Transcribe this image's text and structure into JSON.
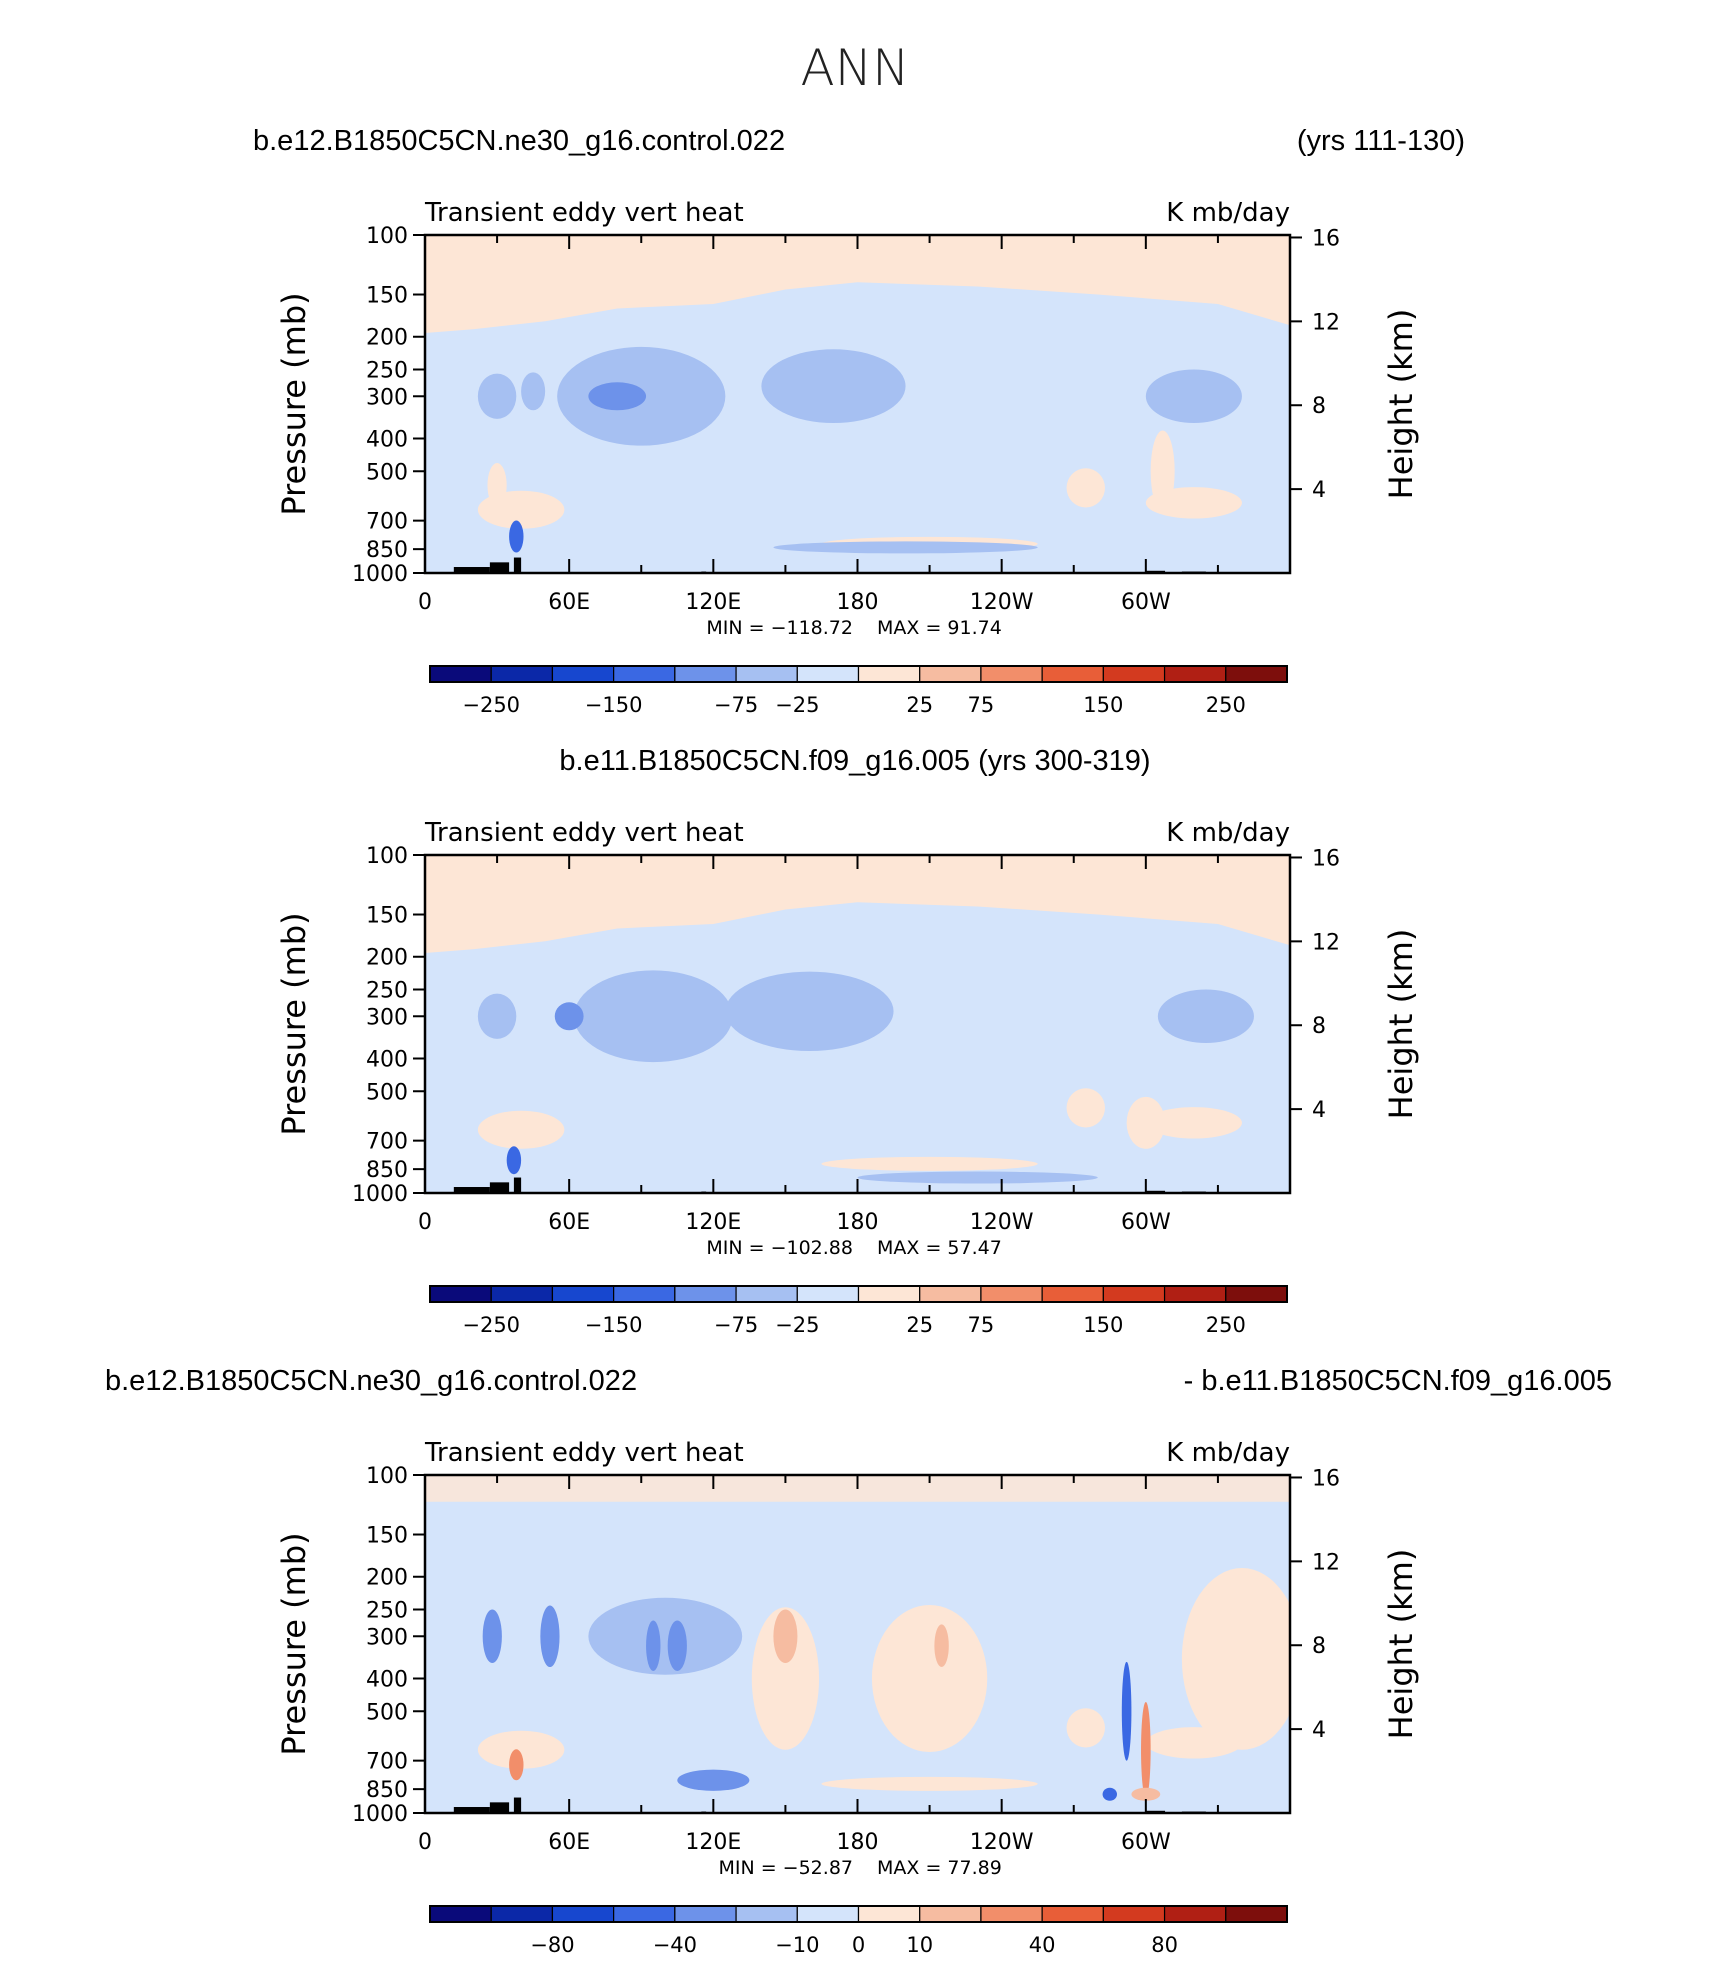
{
  "figure_title": "ANN",
  "colors": {
    "blue": [
      "#0a0a7a",
      "#0b28a8",
      "#1747cf",
      "#3a68e3",
      "#6d92ea",
      "#a6c0f2",
      "#d4e4fb"
    ],
    "red": [
      "#fde6d6",
      "#f6bca1",
      "#f28e6a",
      "#e85e38",
      "#d33a1f",
      "#b01f14",
      "#7d0e0c"
    ],
    "land": "#000000"
  },
  "chart_data": [
    {
      "type": "heatmap",
      "left_title": "b.e12.B1850C5CN.ne30_g16.control.022",
      "right_title": "(yrs 111-130)",
      "center_title": "",
      "subtitle_left": "Transient  eddy  vert  heat",
      "subtitle_right": "K  mb/day",
      "ylabel": "Pressure  (mb)",
      "ylabel_right": "Height  (km)",
      "y_ticks": [
        "100",
        "150",
        "200",
        "250",
        "300",
        "400",
        "500",
        "700",
        "850",
        "1000"
      ],
      "y_tick_values": [
        100,
        150,
        200,
        250,
        300,
        400,
        500,
        700,
        850,
        1000
      ],
      "y_right_ticks": [
        "16",
        "12",
        "8",
        "4"
      ],
      "y_right_values": [
        16,
        12,
        8,
        4
      ],
      "x_ticks": [
        "0",
        "60E",
        "120E",
        "180",
        "120W",
        "60W"
      ],
      "x_tick_values": [
        0,
        60,
        120,
        180,
        240,
        300
      ],
      "xlim": [
        0,
        360
      ],
      "min_label": "MIN  =  −118.72",
      "max_label": "MAX  =   91.74",
      "colorbar_labels": [
        "−250",
        "−150",
        "−75",
        "−25",
        "25",
        "75",
        "150",
        "250"
      ],
      "blobs": [
        {
          "lon": 30,
          "p": 300,
          "rx": 8,
          "rp": 50,
          "c": "b5"
        },
        {
          "lon": 45,
          "p": 290,
          "rx": 5,
          "rp": 40,
          "c": "b5"
        },
        {
          "lon": 90,
          "p": 300,
          "rx": 35,
          "rp": 120,
          "c": "b5"
        },
        {
          "lon": 170,
          "p": 280,
          "rx": 30,
          "rp": 80,
          "c": "b5"
        },
        {
          "lon": 320,
          "p": 300,
          "rx": 20,
          "rp": 60,
          "c": "b5"
        },
        {
          "lon": 80,
          "p": 300,
          "rx": 12,
          "rp": 30,
          "c": "b4"
        },
        {
          "lon": 38,
          "p": 780,
          "rx": 3,
          "rp": 90,
          "c": "b3"
        },
        {
          "lon": 307,
          "p": 500,
          "rx": 5,
          "rp": 160,
          "c": "r1"
        },
        {
          "lon": 30,
          "p": 550,
          "rx": 4,
          "rp": 90,
          "c": "r1"
        },
        {
          "lon": 200,
          "p": 840,
          "rx": 55,
          "rp": 30,
          "c": "b5"
        }
      ]
    },
    {
      "type": "heatmap",
      "left_title": "",
      "right_title": "",
      "center_title": "b.e11.B1850C5CN.f09_g16.005 (yrs 300-319)",
      "subtitle_left": "Transient  eddy  vert  heat",
      "subtitle_right": "K  mb/day",
      "ylabel": "Pressure  (mb)",
      "ylabel_right": "Height  (km)",
      "y_ticks": [
        "100",
        "150",
        "200",
        "250",
        "300",
        "400",
        "500",
        "700",
        "850",
        "1000"
      ],
      "y_tick_values": [
        100,
        150,
        200,
        250,
        300,
        400,
        500,
        700,
        850,
        1000
      ],
      "y_right_ticks": [
        "16",
        "12",
        "8",
        "4"
      ],
      "y_right_values": [
        16,
        12,
        8,
        4
      ],
      "x_ticks": [
        "0",
        "60E",
        "120E",
        "180",
        "120W",
        "60W"
      ],
      "x_tick_values": [
        0,
        60,
        120,
        180,
        240,
        300
      ],
      "xlim": [
        0,
        360
      ],
      "min_label": "MIN  =  −102.88",
      "max_label": "MAX  =   57.47",
      "colorbar_labels": [
        "−250",
        "−150",
        "−75",
        "−25",
        "25",
        "75",
        "150",
        "250"
      ],
      "blobs": [
        {
          "lon": 30,
          "p": 300,
          "rx": 8,
          "rp": 50,
          "c": "b5"
        },
        {
          "lon": 95,
          "p": 300,
          "rx": 33,
          "rp": 110,
          "c": "b5"
        },
        {
          "lon": 160,
          "p": 290,
          "rx": 35,
          "rp": 90,
          "c": "b5"
        },
        {
          "lon": 325,
          "p": 300,
          "rx": 20,
          "rp": 60,
          "c": "b5"
        },
        {
          "lon": 60,
          "p": 300,
          "rx": 6,
          "rp": 30,
          "c": "b4"
        },
        {
          "lon": 37,
          "p": 800,
          "rx": 3,
          "rp": 80,
          "c": "b3"
        },
        {
          "lon": 300,
          "p": 620,
          "rx": 8,
          "rp": 120,
          "c": "r1"
        },
        {
          "lon": 230,
          "p": 900,
          "rx": 50,
          "rp": 25,
          "c": "b5"
        }
      ]
    },
    {
      "type": "heatmap",
      "left_title": "b.e12.B1850C5CN.ne30_g16.control.022",
      "right_title": "- b.e11.B1850C5CN.f09_g16.005",
      "center_title": "",
      "subtitle_left": "Transient  eddy  vert  heat",
      "subtitle_right": "K  mb/day",
      "ylabel": "Pressure  (mb)",
      "ylabel_right": "Height  (km)",
      "y_ticks": [
        "100",
        "150",
        "200",
        "250",
        "300",
        "400",
        "500",
        "700",
        "850",
        "1000"
      ],
      "y_tick_values": [
        100,
        150,
        200,
        250,
        300,
        400,
        500,
        700,
        850,
        1000
      ],
      "y_right_ticks": [
        "16",
        "12",
        "8",
        "4"
      ],
      "y_right_values": [
        16,
        12,
        8,
        4
      ],
      "x_ticks": [
        "0",
        "60E",
        "120E",
        "180",
        "120W",
        "60W"
      ],
      "x_tick_values": [
        0,
        60,
        120,
        180,
        240,
        300
      ],
      "xlim": [
        0,
        360
      ],
      "min_label": "MIN  =  −52.87",
      "max_label": "MAX  =   77.89",
      "colorbar_labels": [
        "−80",
        "−40",
        "−10",
        "0",
        "10",
        "40",
        "80"
      ],
      "blobs": [
        {
          "lon": 100,
          "p": 300,
          "rx": 32,
          "rp": 90,
          "c": "b5"
        },
        {
          "lon": 105,
          "p": 320,
          "rx": 4,
          "rp": 60,
          "c": "b4"
        },
        {
          "lon": 95,
          "p": 320,
          "rx": 3,
          "rp": 60,
          "c": "b4"
        },
        {
          "lon": 52,
          "p": 300,
          "rx": 4,
          "rp": 70,
          "c": "b4"
        },
        {
          "lon": 28,
          "p": 300,
          "rx": 4,
          "rp": 60,
          "c": "b4"
        },
        {
          "lon": 150,
          "p": 400,
          "rx": 14,
          "rp": 250,
          "c": "r1"
        },
        {
          "lon": 150,
          "p": 300,
          "rx": 5,
          "rp": 60,
          "c": "r2"
        },
        {
          "lon": 210,
          "p": 400,
          "rx": 24,
          "rp": 260,
          "c": "r1"
        },
        {
          "lon": 215,
          "p": 320,
          "rx": 3,
          "rp": 50,
          "c": "r2"
        },
        {
          "lon": 340,
          "p": 350,
          "rx": 25,
          "rp": 300,
          "c": "r1"
        },
        {
          "lon": 38,
          "p": 720,
          "rx": 3,
          "rp": 80,
          "c": "r3"
        },
        {
          "lon": 300,
          "p": 650,
          "rx": 2,
          "rp": 250,
          "c": "r3"
        },
        {
          "lon": 292,
          "p": 500,
          "rx": 2,
          "rp": 200,
          "c": "b3"
        },
        {
          "lon": 120,
          "p": 800,
          "rx": 15,
          "rp": 60,
          "c": "b4"
        },
        {
          "lon": 300,
          "p": 880,
          "rx": 6,
          "rp": 40,
          "c": "r2"
        },
        {
          "lon": 285,
          "p": 880,
          "rx": 3,
          "rp": 40,
          "c": "b3"
        }
      ]
    }
  ]
}
